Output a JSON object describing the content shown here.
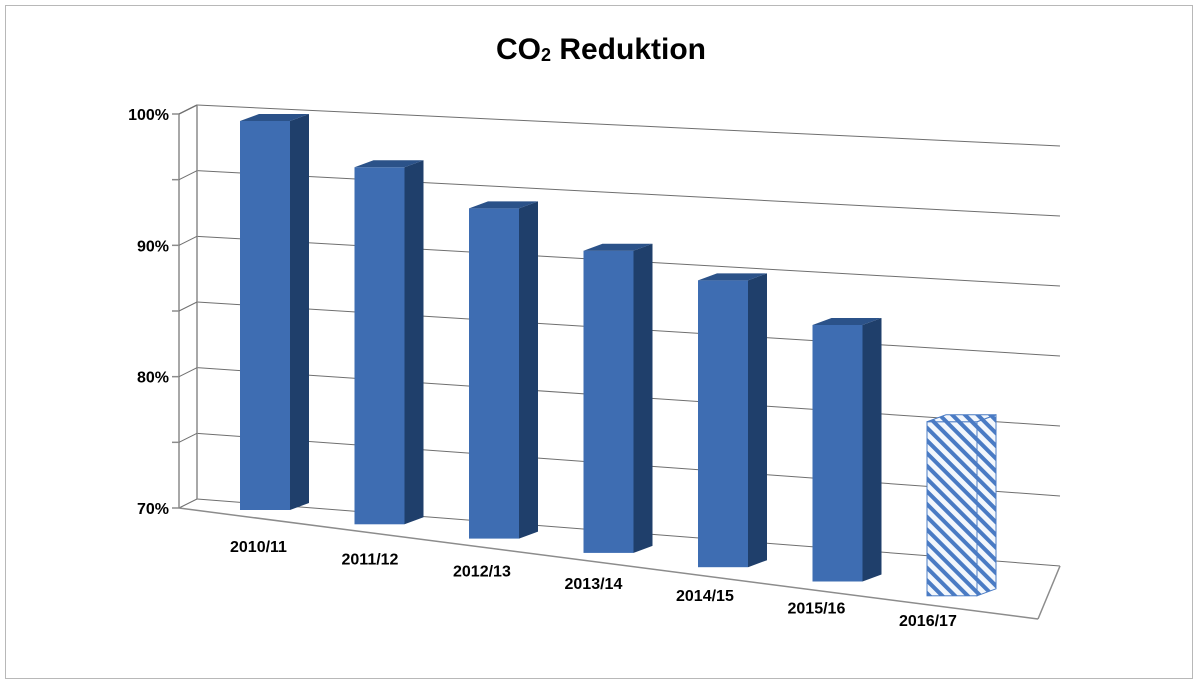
{
  "chart_data": {
    "type": "bar",
    "title": "CO",
    "title_subscript": "2",
    "title_rest": " Reduktion",
    "categories": [
      "2010/11",
      "2011/12",
      "2012/13",
      "2013/14",
      "2014/15",
      "2015/16",
      "2016/17"
    ],
    "values": [
      100,
      97,
      94.5,
      92,
      90.5,
      88,
      82
    ],
    "y_ticks": [
      "70%",
      "80%",
      "90%",
      "100%"
    ],
    "ylim": [
      70,
      100
    ],
    "y_unit": "%",
    "grid": true,
    "style": "3d-column",
    "last_bar_pattern": "hatched",
    "colors": {
      "bar_front": "#3e6db2",
      "bar_side": "#1f3f6b",
      "bar_top": "#2b5289",
      "hatch_bg": "#f3f7fc",
      "hatch_line": "#4a7bc4"
    }
  }
}
